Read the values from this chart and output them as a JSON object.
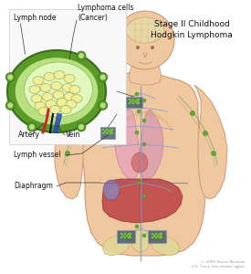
{
  "title": "Stage II Childhood\nHodgkin Lymphoma",
  "title_fontsize": 6.5,
  "background_color": "#ffffff",
  "body_skin_color": "#f0c8a0",
  "body_skin_light": "#f5d8b8",
  "body_outline_color": "#c8906a",
  "lung_left_color": "#e8a8b8",
  "lung_right_color": "#dda0b0",
  "liver_color": "#c04848",
  "liver2_color": "#a03838",
  "spleen_color": "#9080b0",
  "pelvis_color": "#e0d898",
  "pelvis_outline": "#c0b060",
  "lymph_vessel_color": "#8899cc",
  "lymph_vessel_green": "#88aa66",
  "box_face": "#445566",
  "box_edge": "#99aacc",
  "inset_outer": "#5a9a30",
  "inset_inner_light": "#d8f0a0",
  "inset_cell_color": "#f0f0a0",
  "inset_cell_edge": "#888830",
  "artery_color": "#cc2222",
  "vein_color": "#3344cc",
  "brain_color": "#e8d8a8",
  "brain_outline": "#c0a870",
  "neck_color": "#f0c8a0",
  "diaphragm_line": "#6666aa",
  "copyright": "© 2009 Terese Winslow\nU.S. Govt. has certain rights",
  "labels": {
    "lymph_node": "Lymph node",
    "lymphoma_cells": "Lymphoma cells\n(Cancer)",
    "artery": "Artery",
    "vein": "Vein",
    "lymph_vessel": "Lymph vessel",
    "diaphragm": "Diaphragm"
  }
}
